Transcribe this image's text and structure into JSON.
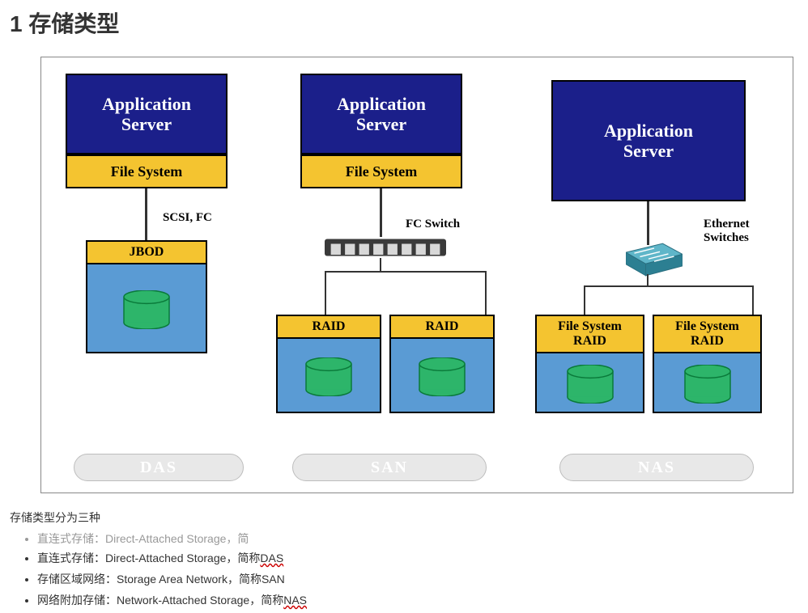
{
  "title": "1  存储类型",
  "palette": {
    "app_server_bg": "#1b1f8a",
    "app_server_text": "#ffffff",
    "file_system_bg": "#f4c430",
    "storage_top_bg": "#f4c430",
    "storage_body_bg": "#5a9bd4",
    "cylinder_fill": "#2db56a",
    "cylinder_stroke": "#0a7a3a",
    "pill_bg": "#e8e8e8",
    "pill_border": "#bdbdbd",
    "pill_text": "#ffffff",
    "diagram_border": "#888888",
    "conn_line": "#333333",
    "label_text": "#000000",
    "switch_body": "#3a3a3a",
    "switch_port": "#d8d8d8",
    "eth_switch_body": "#5fb6c9",
    "eth_switch_side": "#2c7f92"
  },
  "labels": {
    "app_server_l1": "Application",
    "app_server_l2": "Server",
    "file_system": "File System",
    "scsi_fc": "SCSI, FC",
    "jbod": "JBOD",
    "fc_switch": "FC Switch",
    "raid": "RAID",
    "ethernet_switches_l1": "Ethernet",
    "ethernet_switches_l2": "Switches",
    "fs_raid_l1": "File System",
    "fs_raid_l2": "RAID"
  },
  "pills": {
    "das": "DAS",
    "san": "SAN",
    "nas": "NAS"
  },
  "text": {
    "intro": "存储类型分为三种",
    "li_ghost": "直连式存储：Direct-Attached Storage，简",
    "li1_a": "直连式存储：Direct-Attached Storage，简称",
    "li1_b": "DAS",
    "li2": "存储区域网络：Storage Area Network，简称SAN",
    "li3_a": "网络附加存储：Network-Attached Storage，简称",
    "li3_b": "NAS"
  },
  "layout": {
    "diagram_width": 930,
    "diagram_height": 540,
    "app_font_size": 22,
    "fs_font_size": 18,
    "band_font_size": 16,
    "conn_label_font_size": 15,
    "pill_font_size": 20,
    "cylinder_w": 58,
    "cylinder_h": 48
  }
}
